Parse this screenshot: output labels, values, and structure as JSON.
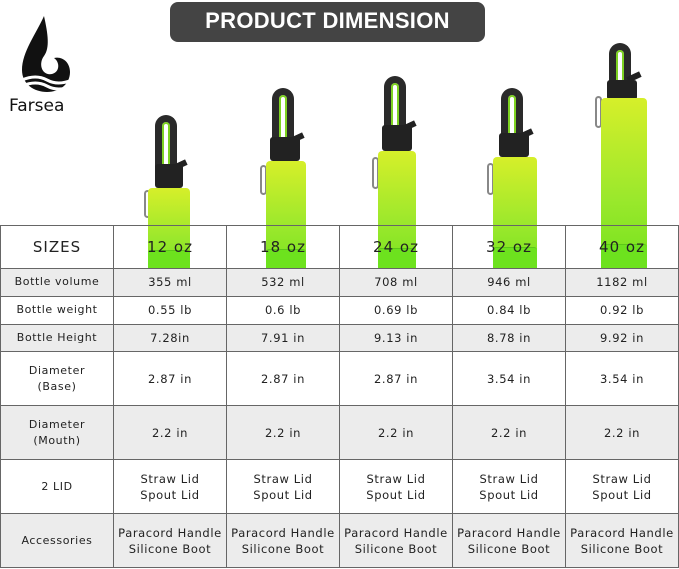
{
  "banner": {
    "title": "PRODUCT DIMENSION"
  },
  "brand": {
    "name": "Farsea",
    "logo_icon": "wave-drop-logo"
  },
  "colors": {
    "bottle_green": "#9be82c",
    "banner": "#444444"
  },
  "table": {
    "header": [
      "SIZES",
      "12 oz",
      "18 oz",
      "24 oz",
      "32 oz",
      "40 oz"
    ],
    "rows": [
      {
        "label": [
          "Bottle volume"
        ],
        "values": [
          [
            "355 ml"
          ],
          [
            "532 ml"
          ],
          [
            "708 ml"
          ],
          [
            "946 ml"
          ],
          [
            "1182 ml"
          ]
        ]
      },
      {
        "label": [
          "Bottle weight"
        ],
        "values": [
          [
            "0.55 lb"
          ],
          [
            "0.6 lb"
          ],
          [
            "0.69 lb"
          ],
          [
            "0.84 lb"
          ],
          [
            "0.92 lb"
          ]
        ]
      },
      {
        "label": [
          "Bottle Height"
        ],
        "values": [
          [
            "7.28in"
          ],
          [
            "7.91 in"
          ],
          [
            "9.13 in"
          ],
          [
            "8.78 in"
          ],
          [
            "9.92 in"
          ]
        ]
      },
      {
        "label": [
          "Diameter",
          "(Base)"
        ],
        "values": [
          [
            "2.87 in"
          ],
          [
            "2.87 in"
          ],
          [
            "2.87 in"
          ],
          [
            "3.54 in"
          ],
          [
            "3.54 in"
          ]
        ]
      },
      {
        "label": [
          "Diameter",
          "(Mouth)"
        ],
        "values": [
          [
            "2.2 in"
          ],
          [
            "2.2 in"
          ],
          [
            "2.2 in"
          ],
          [
            "2.2 in"
          ],
          [
            "2.2 in"
          ]
        ]
      },
      {
        "label": [
          "2 LID"
        ],
        "values": [
          [
            "Straw Lid",
            "Spout Lid"
          ],
          [
            "Straw Lid",
            "Spout Lid"
          ],
          [
            "Straw Lid",
            "Spout Lid"
          ],
          [
            "Straw Lid",
            "Spout Lid"
          ],
          [
            "Straw Lid",
            "Spout Lid"
          ]
        ]
      },
      {
        "label": [
          "Accessories"
        ],
        "values": [
          [
            "Paracord Handle",
            "Silicone Boot"
          ],
          [
            "Paracord Handle",
            "Silicone Boot"
          ],
          [
            "Paracord Handle",
            "Silicone Boot"
          ],
          [
            "Paracord Handle",
            "Silicone Boot"
          ],
          [
            "Paracord Handle",
            "Silicone Boot"
          ]
        ]
      }
    ]
  }
}
